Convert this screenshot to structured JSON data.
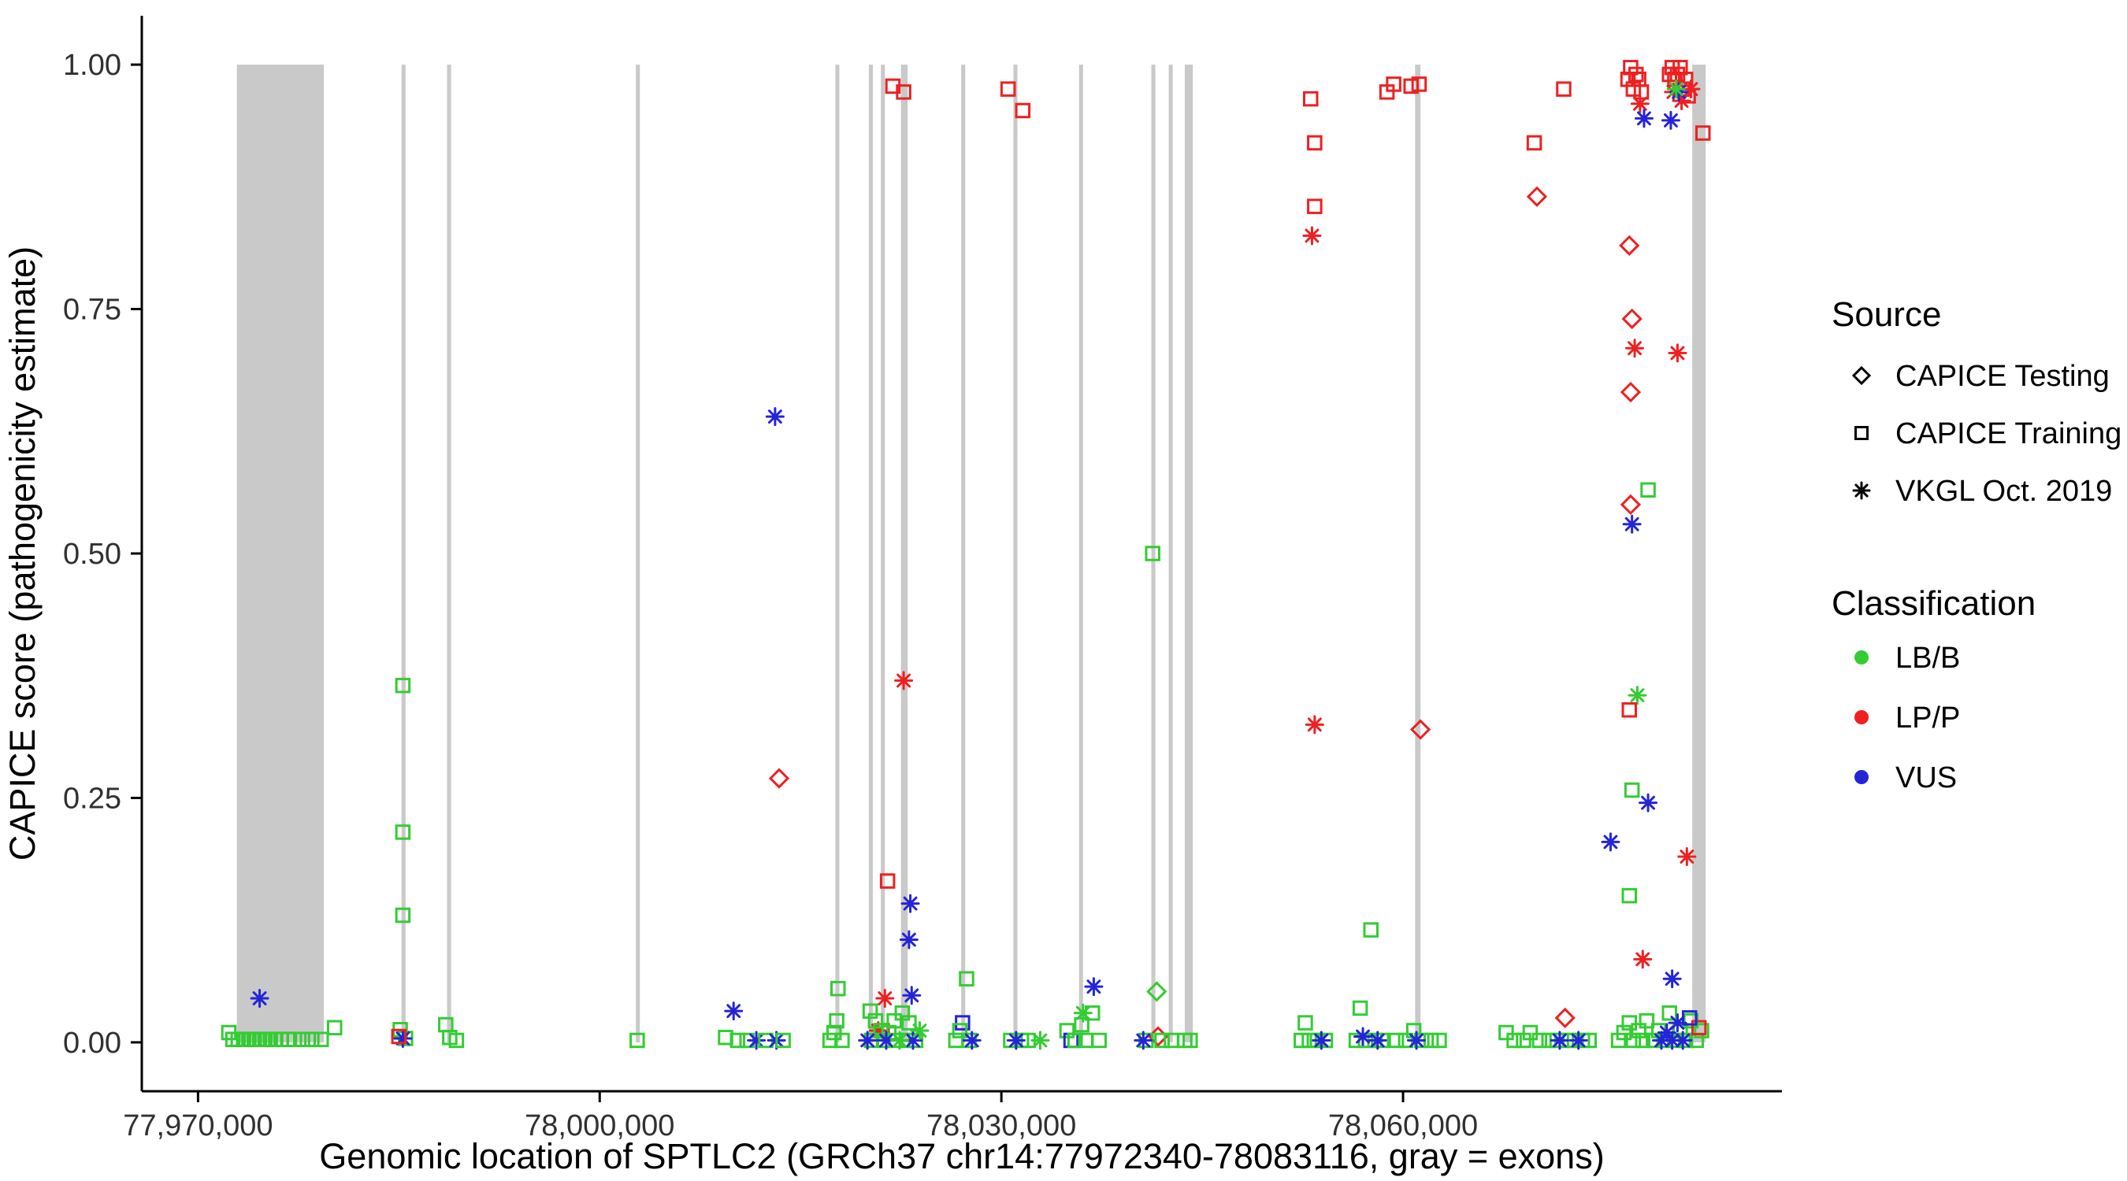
{
  "page": {
    "background": "#FFFFFF"
  },
  "chart_data": {
    "type": "scatter",
    "title": "",
    "xlabel": "Genomic location of SPTLC2 (GRCh37 chr14:77972340-78083116, gray = exons)",
    "ylabel": "CAPICE score (pathogenicity estimate)",
    "xlim": [
      77965800,
      78088300
    ],
    "ylim": [
      -0.05,
      1.05
    ],
    "grid": false,
    "legend_position": "right",
    "exon_color": "#C9C9C9",
    "colors": {
      "LB": "#33CC33",
      "LP": "#EE2020",
      "VUS": "#2424D8"
    },
    "shapes": {
      "T": "diamond",
      "R": "square",
      "V": "asterisk"
    },
    "sources": {
      "T": "CAPICE Testing",
      "R": "CAPICE Training",
      "V": "VKGL Oct. 2019"
    },
    "x_axis": {
      "ticks": [
        {
          "v": 77970000,
          "label": "77,970,000"
        },
        {
          "v": 78000000,
          "label": "78,000,000"
        },
        {
          "v": 78030000,
          "label": "78,030,000"
        },
        {
          "v": 78060000,
          "label": "78,060,000"
        }
      ]
    },
    "y_axis": {
      "ticks": [
        {
          "v": 0.0,
          "label": "0.00"
        },
        {
          "v": 0.25,
          "label": "0.25"
        },
        {
          "v": 0.5,
          "label": "0.50"
        },
        {
          "v": 0.75,
          "label": "0.75"
        },
        {
          "v": 1.0,
          "label": "1.00"
        }
      ]
    },
    "legend": {
      "source": {
        "title": "Source",
        "items": [
          {
            "label": "CAPICE Testing",
            "shape": "diamond"
          },
          {
            "label": "CAPICE Training",
            "shape": "square"
          },
          {
            "label": "VKGL Oct. 2019",
            "shape": "asterisk"
          }
        ]
      },
      "classification": {
        "title": "Classification",
        "items": [
          {
            "label": "LB/B",
            "color": "#33CC33"
          },
          {
            "label": "LP/P",
            "color": "#EE2020"
          },
          {
            "label": "VUS",
            "color": "#2424D8"
          }
        ]
      }
    },
    "exons": [
      [
        77972900,
        77979400
      ],
      [
        77985200,
        77985500
      ],
      [
        77988600,
        77988900
      ],
      [
        78002700,
        78003000
      ],
      [
        78017600,
        78017900
      ],
      [
        78020100,
        78020400
      ],
      [
        78021000,
        78021300
      ],
      [
        78022500,
        78023000
      ],
      [
        78027000,
        78027300
      ],
      [
        78030900,
        78031200
      ],
      [
        78035800,
        78036100
      ],
      [
        78041200,
        78041500
      ],
      [
        78042500,
        78042800
      ],
      [
        78043700,
        78044300
      ],
      [
        78060900,
        78061300
      ],
      [
        78081600,
        78082600
      ]
    ],
    "points": [
      [
        77972300,
        0.01,
        "R",
        "LB"
      ],
      [
        77972600,
        0.003,
        "R",
        "LB"
      ],
      [
        77973000,
        0.003,
        "R",
        "LB"
      ],
      [
        77973400,
        0.003,
        "R",
        "LB"
      ],
      [
        77973800,
        0.003,
        "R",
        "LB"
      ],
      [
        77974200,
        0.003,
        "R",
        "LB"
      ],
      [
        77974600,
        0.003,
        "R",
        "LB"
      ],
      [
        77975000,
        0.003,
        "R",
        "LB"
      ],
      [
        77975400,
        0.003,
        "R",
        "LB"
      ],
      [
        77975800,
        0.003,
        "R",
        "LB"
      ],
      [
        77976200,
        0.003,
        "R",
        "LB"
      ],
      [
        77976700,
        0.003,
        "R",
        "LB"
      ],
      [
        77977200,
        0.003,
        "R",
        "LB"
      ],
      [
        77977800,
        0.003,
        "R",
        "LB"
      ],
      [
        77978500,
        0.003,
        "R",
        "LB"
      ],
      [
        77979200,
        0.003,
        "R",
        "LB"
      ],
      [
        77980200,
        0.015,
        "R",
        "LB"
      ],
      [
        77974600,
        0.045,
        "V",
        "VUS"
      ],
      [
        77985300,
        0.365,
        "R",
        "LB"
      ],
      [
        77985300,
        0.215,
        "R",
        "LB"
      ],
      [
        77985300,
        0.13,
        "R",
        "LB"
      ],
      [
        77985100,
        0.013,
        "R",
        "LB"
      ],
      [
        77985500,
        0.004,
        "R",
        "LB"
      ],
      [
        77985300,
        0.004,
        "V",
        "VUS"
      ],
      [
        77985000,
        0.006,
        "R",
        "LP"
      ],
      [
        77988500,
        0.018,
        "R",
        "LB"
      ],
      [
        77988800,
        0.005,
        "R",
        "LB"
      ],
      [
        77989300,
        0.002,
        "R",
        "LB"
      ],
      [
        78002800,
        0.002,
        "R",
        "LB"
      ],
      [
        78010000,
        0.032,
        "V",
        "VUS"
      ],
      [
        78009400,
        0.005,
        "R",
        "LB"
      ],
      [
        78010300,
        0.002,
        "R",
        "LB"
      ],
      [
        78011000,
        0.002,
        "R",
        "LB"
      ],
      [
        78011700,
        0.002,
        "V",
        "VUS"
      ],
      [
        78012400,
        0.002,
        "R",
        "LB"
      ],
      [
        78013200,
        0.002,
        "V",
        "VUS"
      ],
      [
        78013700,
        0.002,
        "R",
        "LB"
      ],
      [
        78013100,
        0.64,
        "V",
        "VUS"
      ],
      [
        78013400,
        0.27,
        "T",
        "LP"
      ],
      [
        78017800,
        0.055,
        "R",
        "LB"
      ],
      [
        78017700,
        0.022,
        "R",
        "LB"
      ],
      [
        78017500,
        0.01,
        "R",
        "LB"
      ],
      [
        78017200,
        0.002,
        "R",
        "LB"
      ],
      [
        78018100,
        0.002,
        "R",
        "LB"
      ],
      [
        78021900,
        0.978,
        "R",
        "LP"
      ],
      [
        78022700,
        0.972,
        "R",
        "LP"
      ],
      [
        78022700,
        0.37,
        "V",
        "LP"
      ],
      [
        78021500,
        0.165,
        "R",
        "LP"
      ],
      [
        78023200,
        0.142,
        "V",
        "VUS"
      ],
      [
        78023100,
        0.105,
        "V",
        "VUS"
      ],
      [
        78023300,
        0.048,
        "V",
        "VUS"
      ],
      [
        78021300,
        0.045,
        "V",
        "LP"
      ],
      [
        78020800,
        0.012,
        "V",
        "LP"
      ],
      [
        78021100,
        0.012,
        "R",
        "LP"
      ],
      [
        78020200,
        0.032,
        "R",
        "LB"
      ],
      [
        78020600,
        0.022,
        "R",
        "LB"
      ],
      [
        78021000,
        0.012,
        "R",
        "LB"
      ],
      [
        78021600,
        0.01,
        "R",
        "LB"
      ],
      [
        78022000,
        0.022,
        "R",
        "LB"
      ],
      [
        78022600,
        0.03,
        "R",
        "LB"
      ],
      [
        78023100,
        0.02,
        "R",
        "LB"
      ],
      [
        78020300,
        0.002,
        "R",
        "LB"
      ],
      [
        78021200,
        0.002,
        "R",
        "LB"
      ],
      [
        78022100,
        0.002,
        "R",
        "LB"
      ],
      [
        78022900,
        0.002,
        "R",
        "LB"
      ],
      [
        78023600,
        0.002,
        "R",
        "LB"
      ],
      [
        78020000,
        0.002,
        "V",
        "VUS"
      ],
      [
        78021400,
        0.002,
        "V",
        "VUS"
      ],
      [
        78023400,
        0.002,
        "V",
        "VUS"
      ],
      [
        78023900,
        0.012,
        "V",
        "LB"
      ],
      [
        78022400,
        0.002,
        "V",
        "LB"
      ],
      [
        78027400,
        0.065,
        "R",
        "LB"
      ],
      [
        78027100,
        0.02,
        "R",
        "VUS"
      ],
      [
        78026900,
        0.012,
        "R",
        "LB"
      ],
      [
        78026600,
        0.002,
        "R",
        "LB"
      ],
      [
        78027600,
        0.002,
        "R",
        "LB"
      ],
      [
        78027800,
        0.002,
        "V",
        "VUS"
      ],
      [
        78030500,
        0.975,
        "R",
        "LP"
      ],
      [
        78031600,
        0.953,
        "R",
        "LP"
      ],
      [
        78030700,
        0.002,
        "R",
        "LB"
      ],
      [
        78031500,
        0.002,
        "R",
        "LB"
      ],
      [
        78032000,
        0.002,
        "R",
        "LB"
      ],
      [
        78031100,
        0.002,
        "V",
        "VUS"
      ],
      [
        78032900,
        0.002,
        "V",
        "LB"
      ],
      [
        78034900,
        0.012,
        "R",
        "LB"
      ],
      [
        78035200,
        0.002,
        "R",
        "VUS"
      ],
      [
        78035500,
        0.002,
        "R",
        "LB"
      ],
      [
        78036000,
        0.018,
        "R",
        "LB"
      ],
      [
        78036300,
        0.002,
        "R",
        "LB"
      ],
      [
        78036100,
        0.03,
        "V",
        "LB"
      ],
      [
        78036800,
        0.03,
        "R",
        "LB"
      ],
      [
        78036900,
        0.057,
        "V",
        "VUS"
      ],
      [
        78037300,
        0.002,
        "R",
        "LB"
      ],
      [
        78041300,
        0.5,
        "R",
        "LB"
      ],
      [
        78041600,
        0.052,
        "T",
        "LB"
      ],
      [
        78041700,
        0.006,
        "T",
        "LP"
      ],
      [
        78040800,
        0.002,
        "R",
        "LB"
      ],
      [
        78042000,
        0.002,
        "R",
        "LB"
      ],
      [
        78042700,
        0.002,
        "R",
        "LB"
      ],
      [
        78040600,
        0.002,
        "V",
        "VUS"
      ],
      [
        78043700,
        0.002,
        "R",
        "LB"
      ],
      [
        78044100,
        0.002,
        "R",
        "LB"
      ],
      [
        78053100,
        0.965,
        "R",
        "LP"
      ],
      [
        78053400,
        0.92,
        "R",
        "LP"
      ],
      [
        78053400,
        0.855,
        "R",
        "LP"
      ],
      [
        78053200,
        0.825,
        "V",
        "LP"
      ],
      [
        78053400,
        0.325,
        "V",
        "LP"
      ],
      [
        78052700,
        0.02,
        "R",
        "LB"
      ],
      [
        78052400,
        0.002,
        "R",
        "LB"
      ],
      [
        78053000,
        0.002,
        "R",
        "LB"
      ],
      [
        78053600,
        0.002,
        "R",
        "LB"
      ],
      [
        78054200,
        0.002,
        "R",
        "LB"
      ],
      [
        78053900,
        0.002,
        "V",
        "VUS"
      ],
      [
        78056800,
        0.035,
        "R",
        "LB"
      ],
      [
        78057600,
        0.115,
        "R",
        "LB"
      ],
      [
        78056500,
        0.002,
        "R",
        "LB"
      ],
      [
        78057200,
        0.002,
        "R",
        "LB"
      ],
      [
        78057900,
        0.002,
        "R",
        "LB"
      ],
      [
        78058400,
        0.002,
        "R",
        "LB"
      ],
      [
        78057000,
        0.006,
        "V",
        "VUS"
      ],
      [
        78058100,
        0.002,
        "V",
        "VUS"
      ],
      [
        78058800,
        0.972,
        "R",
        "LP"
      ],
      [
        78059300,
        0.98,
        "R",
        "LP"
      ],
      [
        78060600,
        0.978,
        "R",
        "LP"
      ],
      [
        78061200,
        0.98,
        "R",
        "LP"
      ],
      [
        78061300,
        0.32,
        "T",
        "LP"
      ],
      [
        78059500,
        0.002,
        "R",
        "LB"
      ],
      [
        78060200,
        0.002,
        "R",
        "LB"
      ],
      [
        78060800,
        0.012,
        "R",
        "LB"
      ],
      [
        78061400,
        0.002,
        "R",
        "LB"
      ],
      [
        78062100,
        0.002,
        "R",
        "LB"
      ],
      [
        78062700,
        0.002,
        "R",
        "LB"
      ],
      [
        78061000,
        0.002,
        "V",
        "VUS"
      ],
      [
        78069800,
        0.92,
        "R",
        "LP"
      ],
      [
        78070000,
        0.865,
        "T",
        "LP"
      ],
      [
        78072000,
        0.975,
        "R",
        "LP"
      ],
      [
        78072100,
        0.025,
        "T",
        "LP"
      ],
      [
        78067700,
        0.01,
        "R",
        "LB"
      ],
      [
        78068300,
        0.002,
        "R",
        "LB"
      ],
      [
        78069000,
        0.002,
        "R",
        "LB"
      ],
      [
        78069500,
        0.01,
        "R",
        "LB"
      ],
      [
        78070200,
        0.002,
        "R",
        "LB"
      ],
      [
        78070900,
        0.002,
        "R",
        "LB"
      ],
      [
        78071500,
        0.002,
        "R",
        "LB"
      ],
      [
        78072200,
        0.002,
        "R",
        "LB"
      ],
      [
        78072800,
        0.002,
        "R",
        "LB"
      ],
      [
        78073400,
        0.002,
        "R",
        "LB"
      ],
      [
        78073900,
        0.002,
        "R",
        "LB"
      ],
      [
        78071700,
        0.002,
        "V",
        "VUS"
      ],
      [
        78073100,
        0.002,
        "V",
        "VUS"
      ],
      [
        78076800,
        0.985,
        "R",
        "LP"
      ],
      [
        78077000,
        0.997,
        "R",
        "LP"
      ],
      [
        78077200,
        0.975,
        "R",
        "LP"
      ],
      [
        78077400,
        0.99,
        "R",
        "LP"
      ],
      [
        78077600,
        0.985,
        "R",
        "LP"
      ],
      [
        78077800,
        0.972,
        "R",
        "LP"
      ],
      [
        78077700,
        0.96,
        "V",
        "LP"
      ],
      [
        78078000,
        0.945,
        "V",
        "VUS"
      ],
      [
        78079900,
        0.99,
        "R",
        "LP"
      ],
      [
        78080100,
        0.997,
        "R",
        "LP"
      ],
      [
        78080300,
        0.985,
        "R",
        "LP"
      ],
      [
        78080500,
        0.99,
        "R",
        "LP"
      ],
      [
        78080700,
        0.997,
        "R",
        "LP"
      ],
      [
        78080900,
        0.975,
        "R",
        "LP"
      ],
      [
        78081100,
        0.985,
        "R",
        "LP"
      ],
      [
        78081300,
        0.968,
        "R",
        "LP"
      ],
      [
        78082400,
        0.93,
        "R",
        "LP"
      ],
      [
        78080200,
        0.972,
        "V",
        "LP"
      ],
      [
        78080800,
        0.963,
        "V",
        "LP"
      ],
      [
        78081500,
        0.975,
        "V",
        "LP"
      ],
      [
        78080000,
        0.943,
        "V",
        "VUS"
      ],
      [
        78080600,
        0.972,
        "V",
        "VUS"
      ],
      [
        78080400,
        0.975,
        "V",
        "LB"
      ],
      [
        78076900,
        0.815,
        "T",
        "LP"
      ],
      [
        78077100,
        0.74,
        "T",
        "LP"
      ],
      [
        78077300,
        0.71,
        "V",
        "LP"
      ],
      [
        78080500,
        0.705,
        "V",
        "LP"
      ],
      [
        78077000,
        0.665,
        "T",
        "LP"
      ],
      [
        78078300,
        0.565,
        "R",
        "LB"
      ],
      [
        78077000,
        0.55,
        "T",
        "LP"
      ],
      [
        78077100,
        0.53,
        "V",
        "VUS"
      ],
      [
        78077500,
        0.355,
        "V",
        "LB"
      ],
      [
        78076900,
        0.34,
        "R",
        "LP"
      ],
      [
        78077100,
        0.258,
        "R",
        "LB"
      ],
      [
        78078300,
        0.245,
        "V",
        "VUS"
      ],
      [
        78075500,
        0.205,
        "V",
        "VUS"
      ],
      [
        78081200,
        0.19,
        "V",
        "LP"
      ],
      [
        78076900,
        0.15,
        "R",
        "LB"
      ],
      [
        78077900,
        0.085,
        "V",
        "LP"
      ],
      [
        78080100,
        0.065,
        "V",
        "VUS"
      ],
      [
        78076100,
        0.002,
        "R",
        "LB"
      ],
      [
        78076500,
        0.01,
        "R",
        "LB"
      ],
      [
        78076900,
        0.02,
        "R",
        "LB"
      ],
      [
        78077200,
        0.002,
        "R",
        "LB"
      ],
      [
        78077600,
        0.012,
        "R",
        "LB"
      ],
      [
        78077900,
        0.002,
        "R",
        "LB"
      ],
      [
        78078200,
        0.022,
        "R",
        "LB"
      ],
      [
        78078700,
        0.002,
        "R",
        "LB"
      ],
      [
        78079100,
        0.012,
        "R",
        "LB"
      ],
      [
        78079500,
        0.002,
        "R",
        "LB"
      ],
      [
        78079900,
        0.03,
        "R",
        "LB"
      ],
      [
        78080300,
        0.002,
        "R",
        "LB"
      ],
      [
        78080700,
        0.012,
        "R",
        "LB"
      ],
      [
        78081100,
        0.002,
        "R",
        "LB"
      ],
      [
        78081500,
        0.022,
        "R",
        "LB"
      ],
      [
        78081900,
        0.002,
        "R",
        "LB"
      ],
      [
        78082300,
        0.012,
        "R",
        "LB"
      ],
      [
        78079300,
        0.002,
        "V",
        "VUS"
      ],
      [
        78079700,
        0.01,
        "V",
        "VUS"
      ],
      [
        78080100,
        0.002,
        "V",
        "VUS"
      ],
      [
        78080500,
        0.02,
        "V",
        "VUS"
      ],
      [
        78080900,
        0.002,
        "V",
        "VUS"
      ],
      [
        78082100,
        0.015,
        "R",
        "LP"
      ],
      [
        78081400,
        0.025,
        "R",
        "VUS"
      ]
    ]
  }
}
